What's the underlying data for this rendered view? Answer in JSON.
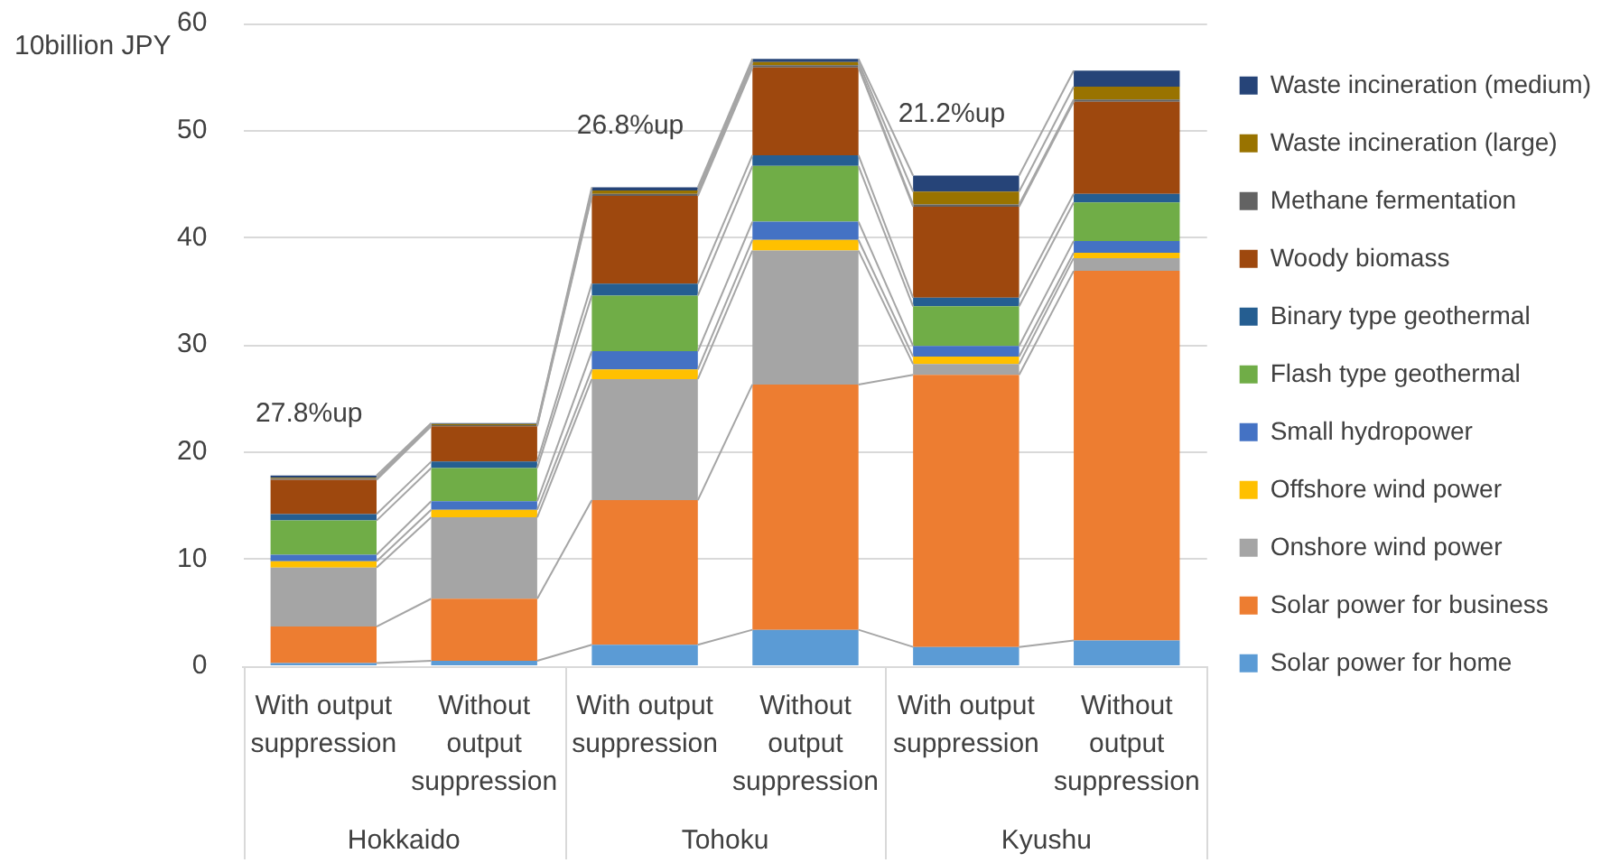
{
  "chart_data": {
    "type": "bar",
    "stacked": true,
    "ylabel": "10billion JPY",
    "categories": [
      "With output suppression",
      "Without output suppression",
      "With output suppression",
      "Without output suppression",
      "With output suppression",
      "Without output suppression"
    ],
    "series": [
      {
        "name": "Solar power for home",
        "color": "#5b9bd5",
        "values": [
          0.3,
          0.5,
          2.0,
          3.4,
          1.8,
          2.4
        ]
      },
      {
        "name": "Solar power for business",
        "color": "#ed7d31",
        "values": [
          3.4,
          5.8,
          13.5,
          22.9,
          25.4,
          34.5
        ]
      },
      {
        "name": "Onshore wind power",
        "color": "#a5a5a5",
        "values": [
          5.5,
          7.6,
          11.3,
          12.5,
          1.0,
          1.2
        ]
      },
      {
        "name": "Offshore wind power",
        "color": "#ffc000",
        "values": [
          0.6,
          0.7,
          0.9,
          1.0,
          0.7,
          0.5
        ]
      },
      {
        "name": "Small hydropower",
        "color": "#4472c4",
        "values": [
          0.6,
          0.8,
          1.7,
          1.7,
          1.0,
          1.1
        ]
      },
      {
        "name": "Flash type geothermal",
        "color": "#70ad47",
        "values": [
          3.2,
          3.1,
          5.2,
          5.2,
          3.7,
          3.6
        ]
      },
      {
        "name": "Binary type geothermal",
        "color": "#255e91",
        "values": [
          0.6,
          0.6,
          1.1,
          1.0,
          0.8,
          0.8
        ]
      },
      {
        "name": "Woody biomass",
        "color": "#9e480e",
        "values": [
          3.2,
          3.3,
          8.2,
          8.2,
          8.5,
          8.6
        ]
      },
      {
        "name": "Methane fermentation",
        "color": "#636363",
        "values": [
          0.1,
          0.1,
          0.2,
          0.2,
          0.2,
          0.2
        ]
      },
      {
        "name": "Waste incineration (large)",
        "color": "#997300",
        "values": [
          0.1,
          0.1,
          0.3,
          0.3,
          1.2,
          1.2
        ]
      },
      {
        "name": "Waste incineration (medium)",
        "color": "#264478",
        "values": [
          0.2,
          0.1,
          0.3,
          0.3,
          1.5,
          1.5
        ]
      }
    ],
    "ylim": [
      0,
      60
    ],
    "yticks": [
      0,
      10,
      20,
      30,
      40,
      50,
      60
    ],
    "grid": "y",
    "legend": "right",
    "annotations": [
      "27.8%up",
      "26.8%up",
      "21.2%up",
      "Hokkaido",
      "Tohoku",
      "Kyushu"
    ]
  }
}
